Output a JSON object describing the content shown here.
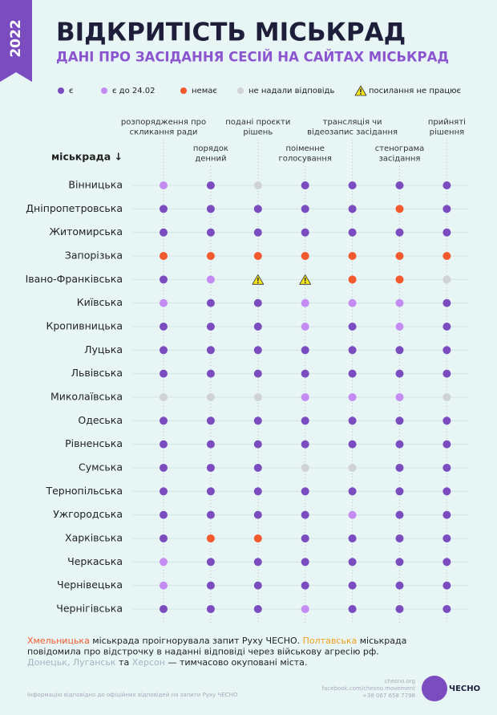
{
  "badge": "2022",
  "title": "ВІДКРИТІСТЬ МІСЬКРАД",
  "subtitle": "ДАНІ ПРО ЗАСІДАННЯ СЕСІЙ НА САЙТАХ МІСЬКРАД",
  "legend": [
    {
      "label": "є",
      "color": "#7b4cc0"
    },
    {
      "label": "є до 24.02",
      "color": "#c48cf2"
    },
    {
      "label": "немає",
      "color": "#f25a2e"
    },
    {
      "label": "не надали відповідь",
      "color": "#cfd3d3"
    },
    {
      "label": "посилання не працює",
      "color": "#f3e21b",
      "shape": "triangle"
    }
  ],
  "table": {
    "row_header": "міськрада ↓",
    "columns": [
      [
        "розпорядження про",
        "скликання ради"
      ],
      [
        "порядок",
        "денний"
      ],
      [
        "подані проєкти",
        "рішень"
      ],
      [
        "поіменне",
        "голосування"
      ],
      [
        "трансляція чи",
        "відеозапис засідання"
      ],
      [
        "стенограма",
        "засідання"
      ],
      [
        "прийняті",
        "рішення"
      ]
    ],
    "rows": [
      {
        "name": "Вінницька",
        "cells": [
          1,
          0,
          3,
          0,
          0,
          0,
          0
        ]
      },
      {
        "name": "Дніпропетровська",
        "cells": [
          0,
          0,
          0,
          0,
          0,
          2,
          0
        ]
      },
      {
        "name": "Житомирська",
        "cells": [
          0,
          0,
          0,
          0,
          0,
          0,
          0
        ]
      },
      {
        "name": "Запорізька",
        "cells": [
          2,
          2,
          2,
          2,
          2,
          2,
          2
        ]
      },
      {
        "name": "Івано-Франківська",
        "cells": [
          0,
          1,
          4,
          4,
          2,
          2,
          3
        ]
      },
      {
        "name": "Київська",
        "cells": [
          1,
          0,
          0,
          1,
          1,
          1,
          0
        ]
      },
      {
        "name": "Кропивницька",
        "cells": [
          0,
          0,
          0,
          1,
          0,
          1,
          0
        ]
      },
      {
        "name": "Луцька",
        "cells": [
          0,
          0,
          0,
          0,
          0,
          0,
          0
        ]
      },
      {
        "name": "Львівська",
        "cells": [
          0,
          0,
          0,
          0,
          0,
          0,
          0
        ]
      },
      {
        "name": "Миколаївська",
        "cells": [
          3,
          3,
          3,
          1,
          1,
          1,
          3
        ]
      },
      {
        "name": "Одеська",
        "cells": [
          0,
          0,
          0,
          0,
          0,
          0,
          0
        ]
      },
      {
        "name": "Рівненська",
        "cells": [
          0,
          0,
          0,
          0,
          0,
          0,
          0
        ]
      },
      {
        "name": "Сумська",
        "cells": [
          0,
          0,
          0,
          3,
          3,
          0,
          0
        ]
      },
      {
        "name": "Тернопільська",
        "cells": [
          0,
          0,
          0,
          0,
          0,
          0,
          0
        ]
      },
      {
        "name": "Ужгородська",
        "cells": [
          0,
          0,
          0,
          0,
          1,
          0,
          0
        ]
      },
      {
        "name": "Харківська",
        "cells": [
          0,
          2,
          2,
          0,
          0,
          0,
          0
        ]
      },
      {
        "name": "Черкаська",
        "cells": [
          1,
          0,
          0,
          0,
          0,
          0,
          0
        ]
      },
      {
        "name": "Чернівецька",
        "cells": [
          1,
          0,
          0,
          0,
          0,
          0,
          0
        ]
      },
      {
        "name": "Чернігівська",
        "cells": [
          0,
          0,
          0,
          1,
          0,
          0,
          0
        ]
      }
    ]
  },
  "notes": [
    [
      {
        "text": "Хмельницька",
        "color": "#f25a2e"
      },
      {
        "text": " міськрада проігнорувала запит Руху ЧЕСНО. "
      },
      {
        "text": "Полтавська",
        "color": "#f0a020"
      },
      {
        "text": " міськрада"
      }
    ],
    [
      {
        "text": "повідомила про відстрочку в наданні відповіді через військову агресію рф."
      }
    ],
    [
      {
        "text": "Донецьк, Луганськ",
        "color": "#9fb6c6"
      },
      {
        "text": " та "
      },
      {
        "text": "Херсон",
        "color": "#9fb6c6"
      },
      {
        "text": " — тимчасово окуповані міста."
      }
    ]
  ],
  "source": "Інформацію відповідно до офіційних відповідей на запити Руху ЧЕСНО",
  "contacts": [
    "chesno.org",
    "facebook.com/chesno.movement",
    "+38 067 658 7798"
  ],
  "logo": "ЧЕСНО"
}
